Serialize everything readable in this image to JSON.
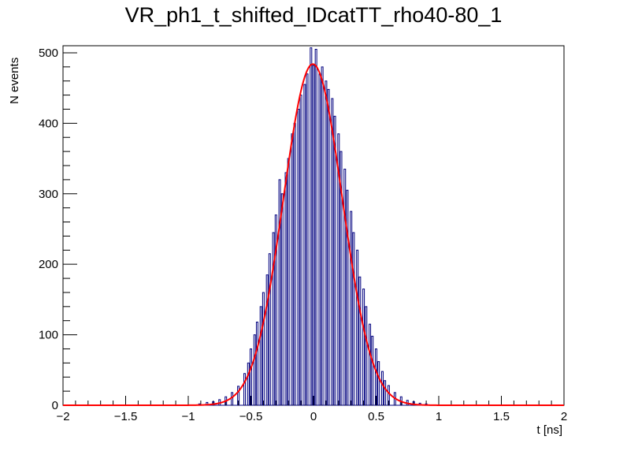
{
  "chart_data": {
    "type": "histogram",
    "title": "VR_ph1_t_shifted_IDcatTT_rho40-80_1",
    "xlabel": "t [ns]",
    "ylabel": "N events",
    "xlim": [
      -2,
      2
    ],
    "ylim": [
      0,
      510
    ],
    "x_ticks": [
      -2,
      -1.5,
      -1,
      -0.5,
      0,
      0.5,
      1,
      1.5,
      2
    ],
    "y_ticks": [
      0,
      100,
      200,
      300,
      400,
      500
    ],
    "grid": false,
    "histogram": {
      "bin_edges_range": [
        -2,
        2
      ],
      "bin_width": 0.0125,
      "nonzero_bins": [
        {
          "x": -0.91,
          "y": 2
        },
        {
          "x": -0.85,
          "y": 4
        },
        {
          "x": -0.8,
          "y": 5
        },
        {
          "x": -0.75,
          "y": 8
        },
        {
          "x": -0.7,
          "y": 12
        },
        {
          "x": -0.65,
          "y": 18
        },
        {
          "x": -0.6,
          "y": 27
        },
        {
          "x": -0.55,
          "y": 45
        },
        {
          "x": -0.52,
          "y": 60
        },
        {
          "x": -0.5,
          "y": 80
        },
        {
          "x": -0.47,
          "y": 100
        },
        {
          "x": -0.45,
          "y": 118
        },
        {
          "x": -0.42,
          "y": 140
        },
        {
          "x": -0.4,
          "y": 160
        },
        {
          "x": -0.37,
          "y": 185
        },
        {
          "x": -0.35,
          "y": 215
        },
        {
          "x": -0.32,
          "y": 245
        },
        {
          "x": -0.3,
          "y": 270
        },
        {
          "x": -0.27,
          "y": 320
        },
        {
          "x": -0.25,
          "y": 300
        },
        {
          "x": -0.22,
          "y": 330
        },
        {
          "x": -0.2,
          "y": 350
        },
        {
          "x": -0.17,
          "y": 385
        },
        {
          "x": -0.15,
          "y": 400
        },
        {
          "x": -0.12,
          "y": 420
        },
        {
          "x": -0.1,
          "y": 440
        },
        {
          "x": -0.07,
          "y": 455
        },
        {
          "x": -0.05,
          "y": 470
        },
        {
          "x": -0.02,
          "y": 507
        },
        {
          "x": 0.0,
          "y": 482
        },
        {
          "x": 0.02,
          "y": 505
        },
        {
          "x": 0.05,
          "y": 470
        },
        {
          "x": 0.07,
          "y": 480
        },
        {
          "x": 0.1,
          "y": 460
        },
        {
          "x": 0.12,
          "y": 448
        },
        {
          "x": 0.15,
          "y": 435
        },
        {
          "x": 0.17,
          "y": 410
        },
        {
          "x": 0.2,
          "y": 385
        },
        {
          "x": 0.22,
          "y": 360
        },
        {
          "x": 0.25,
          "y": 335
        },
        {
          "x": 0.27,
          "y": 305
        },
        {
          "x": 0.3,
          "y": 275
        },
        {
          "x": 0.32,
          "y": 245
        },
        {
          "x": 0.35,
          "y": 220
        },
        {
          "x": 0.37,
          "y": 182
        },
        {
          "x": 0.4,
          "y": 165
        },
        {
          "x": 0.42,
          "y": 140
        },
        {
          "x": 0.45,
          "y": 115
        },
        {
          "x": 0.47,
          "y": 98
        },
        {
          "x": 0.5,
          "y": 80
        },
        {
          "x": 0.52,
          "y": 62
        },
        {
          "x": 0.55,
          "y": 48
        },
        {
          "x": 0.57,
          "y": 35
        },
        {
          "x": 0.6,
          "y": 28
        },
        {
          "x": 0.65,
          "y": 18
        },
        {
          "x": 0.7,
          "y": 12
        },
        {
          "x": 0.75,
          "y": 7
        },
        {
          "x": 0.8,
          "y": 5
        },
        {
          "x": 0.85,
          "y": 3
        },
        {
          "x": 0.9,
          "y": 2
        }
      ]
    },
    "fit": {
      "type": "gaussian",
      "amplitude": 484,
      "mean": -0.005,
      "sigma": 0.235
    },
    "colors": {
      "histogram": "#00007f",
      "fit": "#ff0000",
      "axes": "#000000"
    }
  }
}
